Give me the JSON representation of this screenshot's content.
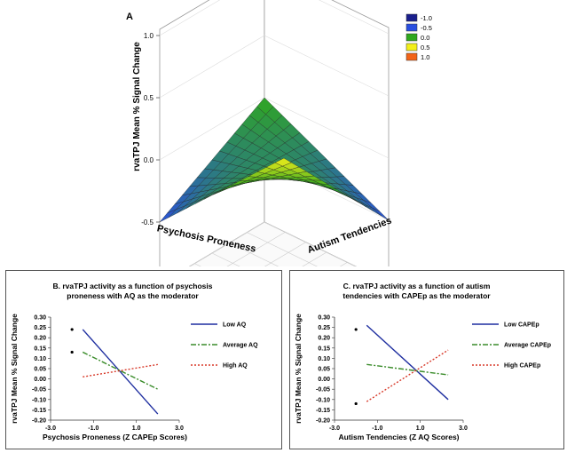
{
  "chart_data": [
    {
      "panel": "A",
      "type": "surface3d",
      "panel_label": "A",
      "zlabel": "rvaTPJ Mean % Signal Change",
      "xlabel": "Psychosis Proneness",
      "ylabel": "Autism Tendencies",
      "x_ticks": [
        "-3",
        "-2",
        "-1",
        "0",
        "1",
        "2",
        "3"
      ],
      "y_ticks": [
        "-3",
        "-2",
        "-1",
        "0",
        "1",
        "2",
        "3"
      ],
      "z_ticks": [
        "-1.0",
        "-0.5",
        "0.0",
        "0.5",
        "1.0"
      ],
      "zlim": [
        -1.0,
        1.0
      ],
      "legend": [
        {
          "label": "-1.0",
          "color": "#1a1f8c"
        },
        {
          "label": "-0.5",
          "color": "#2a4fe0"
        },
        {
          "label": "0.0",
          "color": "#2fa81e"
        },
        {
          "label": "0.5",
          "color": "#f2ef1a"
        },
        {
          "label": "1.0",
          "color": "#f26418"
        }
      ],
      "surface": {
        "equation_note": "saddle-like surface; peak about 1.0 near front corner, about -0.5 at left and right corners",
        "corner_values": {
          "far": 0.0,
          "left": -0.5,
          "right": -0.5,
          "front": 1.0
        }
      }
    },
    {
      "panel": "B",
      "type": "line",
      "title": "B. rvaTPJ activity as a function of psychosis proneness with AQ as the moderator",
      "title_line1": "B. rvaTPJ activity as a function of psychosis",
      "title_line2": "proneness with AQ as the moderator",
      "xlabel": "Psychosis Proneness (Z CAPEp Scores)",
      "ylabel": "rvaTPJ Mean % Signal Change",
      "xlim": [
        -3.0,
        3.0
      ],
      "ylim": [
        -0.2,
        0.3
      ],
      "x_ticks": [
        "-3.0",
        "-1.0",
        "1.0",
        "3.0"
      ],
      "x_tick_values": [
        -3.0,
        -1.0,
        1.0,
        3.0
      ],
      "y_ticks": [
        "0.30",
        "0.25",
        "0.20",
        "0.15",
        "0.10",
        "0.05",
        "0.00",
        "-0.05",
        "-0.10",
        "-0.15",
        "-0.20"
      ],
      "y_tick_values": [
        0.3,
        0.25,
        0.2,
        0.15,
        0.1,
        0.05,
        0.0,
        -0.05,
        -0.1,
        -0.15,
        -0.2
      ],
      "series": [
        {
          "name": "Low AQ",
          "color": "#1f2fa0",
          "dash": "",
          "x": [
            -1.5,
            2.0
          ],
          "y": [
            0.24,
            -0.17
          ]
        },
        {
          "name": "Average AQ",
          "color": "#3a8c2a",
          "dash": "6,2,2,2",
          "x": [
            -1.5,
            2.0
          ],
          "y": [
            0.13,
            -0.05
          ]
        },
        {
          "name": "High AQ",
          "color": "#d83a2a",
          "dash": "2,2",
          "x": [
            -1.5,
            2.0
          ],
          "y": [
            0.01,
            0.07
          ]
        }
      ],
      "markers": [
        {
          "x": -2.0,
          "y": 0.24
        },
        {
          "x": -2.0,
          "y": 0.13
        }
      ]
    },
    {
      "panel": "C",
      "type": "line",
      "title": "C. rvaTPJ activity as a function of autism tendencies with CAPEp as the moderator",
      "title_line1": "C.  rvaTPJ activity as a function of autism",
      "title_line2": "tendencies with CAPEp as the moderator",
      "xlabel": "Autism Tendencies (Z AQ Scores)",
      "ylabel": "rvaTPJ Mean % Signal Change",
      "xlim": [
        -3.0,
        3.0
      ],
      "ylim": [
        -0.2,
        0.3
      ],
      "x_ticks": [
        "-3.0",
        "-1.0",
        "1.0",
        "3.0"
      ],
      "x_tick_values": [
        -3.0,
        -1.0,
        1.0,
        3.0
      ],
      "y_ticks": [
        "0.30",
        "0.25",
        "0.20",
        "0.15",
        "0.10",
        "0.05",
        "0.00",
        "-0.05",
        "-0.10",
        "-0.15",
        "-0.20"
      ],
      "y_tick_values": [
        0.3,
        0.25,
        0.2,
        0.15,
        0.1,
        0.05,
        0.0,
        -0.05,
        -0.1,
        -0.15,
        -0.2
      ],
      "series": [
        {
          "name": "Low CAPEp",
          "color": "#1f2fa0",
          "dash": "",
          "x": [
            -1.5,
            2.3
          ],
          "y": [
            0.26,
            -0.1
          ]
        },
        {
          "name": "Average CAPEp",
          "color": "#3a8c2a",
          "dash": "6,2,2,2",
          "x": [
            -1.5,
            2.3
          ],
          "y": [
            0.07,
            0.02
          ]
        },
        {
          "name": "High CAPEp",
          "color": "#d83a2a",
          "dash": "2,2",
          "x": [
            -1.5,
            2.3
          ],
          "y": [
            -0.11,
            0.14
          ]
        }
      ],
      "markers": [
        {
          "x": -2.0,
          "y": 0.24
        },
        {
          "x": -2.0,
          "y": -0.12
        }
      ]
    }
  ]
}
